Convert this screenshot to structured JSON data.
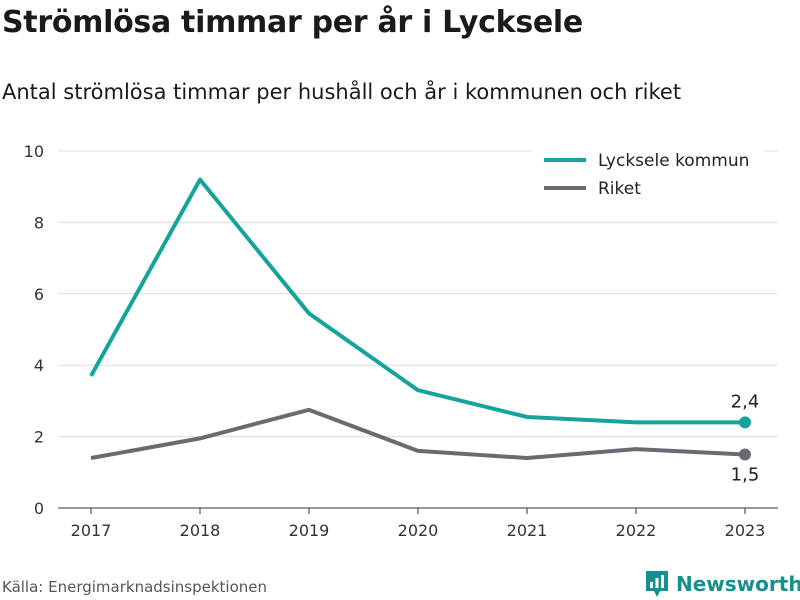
{
  "title": "Strömlösa timmar per år i Lycksele",
  "subtitle": "Antal strömlösa timmar per hushåll och år i kommunen och riket",
  "source": "Källa: Energimarknadsinspektionen",
  "brand": {
    "name": "Newsworthy",
    "icon": "newsworthy-logo-icon",
    "color": "#16908c"
  },
  "chart_data": {
    "type": "line",
    "x": [
      "2017",
      "2018",
      "2019",
      "2020",
      "2021",
      "2022",
      "2023"
    ],
    "ylim": [
      0,
      10
    ],
    "yticks": [
      "0",
      "2",
      "4",
      "6",
      "8",
      "10"
    ],
    "grid": true,
    "legend_position": "top-right",
    "series": [
      {
        "name": "Lycksele kommun",
        "color": "#16a39b",
        "values": [
          3.7,
          9.2,
          5.45,
          3.3,
          2.55,
          2.4,
          2.4
        ],
        "end_label": "2,4"
      },
      {
        "name": "Riket",
        "color": "#6b6a72",
        "values": [
          1.4,
          1.95,
          2.75,
          1.6,
          1.4,
          1.65,
          1.5
        ],
        "end_label": "1,5"
      }
    ]
  }
}
